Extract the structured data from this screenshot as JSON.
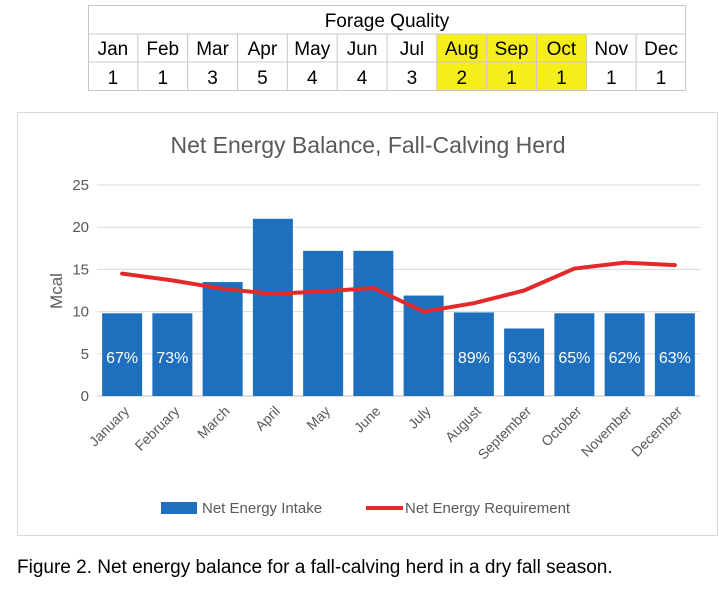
{
  "forage_table": {
    "title": "Forage Quality",
    "months": [
      "Jan",
      "Feb",
      "Mar",
      "Apr",
      "May",
      "Jun",
      "Jul",
      "Aug",
      "Sep",
      "Oct",
      "Nov",
      "Dec"
    ],
    "values": [
      "1",
      "1",
      "3",
      "5",
      "4",
      "4",
      "3",
      "2",
      "1",
      "1",
      "1",
      "1"
    ],
    "highlight_months": [
      "Aug",
      "Sep",
      "Oct"
    ],
    "highlight_color": "#f6ee1a"
  },
  "caption": "Figure 2. Net energy balance for a fall-calving herd in a dry fall season.",
  "chart_data": {
    "type": "bar",
    "title": "Net Energy Balance, Fall-Calving Herd",
    "xlabel": "",
    "ylabel": "Mcal",
    "ylim": [
      0,
      25
    ],
    "yticks": [
      "0",
      "5",
      "10",
      "15",
      "20",
      "25"
    ],
    "grid": true,
    "legend_position": "bottom",
    "categories": [
      "January",
      "February",
      "March",
      "April",
      "May",
      "June",
      "July",
      "August",
      "September",
      "October",
      "November",
      "December"
    ],
    "series": [
      {
        "name": "Net Energy Intake",
        "mark": "bar",
        "color": "#1f6fbf",
        "values": [
          9.8,
          9.8,
          13.5,
          21,
          17.2,
          17.2,
          11.9,
          9.9,
          8.0,
          9.8,
          9.8,
          9.8
        ],
        "labels": [
          "67%",
          "73%",
          "",
          "",
          "",
          "",
          "",
          "89%",
          "63%",
          "65%",
          "62%",
          "63%"
        ]
      },
      {
        "name": "Net Energy Requirement",
        "mark": "line",
        "color": "#e32a2a",
        "values": [
          14.5,
          13.7,
          12.7,
          12.1,
          12.4,
          12.8,
          10.0,
          11.0,
          12.5,
          15.1,
          15.8,
          15.5
        ]
      }
    ]
  }
}
